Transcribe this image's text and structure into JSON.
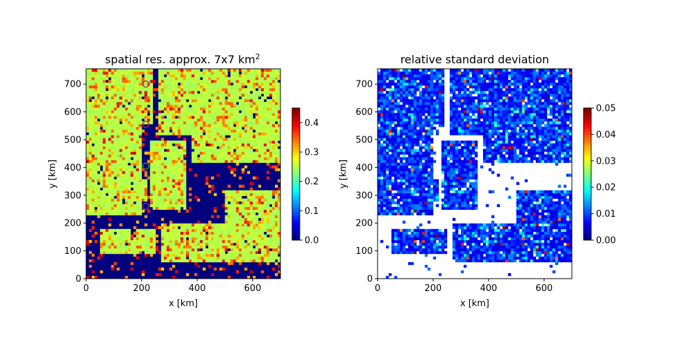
{
  "chart_data": [
    {
      "type": "heatmap",
      "title": "spatial res. approx. 7x7 km",
      "title_superscript": "2",
      "xlabel": "x [km]",
      "ylabel": "y [km]",
      "xlim": [
        0,
        700
      ],
      "ylim": [
        0,
        755
      ],
      "xticks": [
        "0",
        "200",
        "400",
        "600"
      ],
      "yticks": [
        "0",
        "100",
        "200",
        "300",
        "400",
        "500",
        "600",
        "700"
      ],
      "colormap": "jet",
      "colorbar": {
        "min": 0.0,
        "max": 0.45,
        "ticks": [
          "0.0",
          "0.1",
          "0.2",
          "0.3",
          "0.4"
        ]
      },
      "background_value_color": "#00007f",
      "dominant_cloud_value": 0.25,
      "cloud_regions": [
        {
          "x": [
            0,
            240
          ],
          "y": [
            560,
            755
          ]
        },
        {
          "x": [
            260,
            700
          ],
          "y": [
            520,
            755
          ]
        },
        {
          "x": [
            0,
            200
          ],
          "y": [
            230,
            560
          ]
        },
        {
          "x": [
            230,
            360
          ],
          "y": [
            250,
            500
          ]
        },
        {
          "x": [
            380,
            700
          ],
          "y": [
            420,
            640
          ]
        },
        {
          "x": [
            0,
            220
          ],
          "y": [
            280,
            360
          ]
        },
        {
          "x": [
            270,
            700
          ],
          "y": [
            60,
            200
          ]
        },
        {
          "x": [
            50,
            250
          ],
          "y": [
            90,
            180
          ]
        },
        {
          "x": [
            500,
            700
          ],
          "y": [
            180,
            320
          ]
        }
      ],
      "markers": [
        {
          "x": 215,
          "y": 700,
          "color": "#9b2d78"
        },
        {
          "x": 215,
          "y": 555,
          "color": "#b8321a"
        },
        {
          "x": 215,
          "y": 405,
          "color": "#3a8f2a"
        },
        {
          "x": 215,
          "y": 260,
          "color": "#9b2d78"
        }
      ]
    },
    {
      "type": "heatmap",
      "title": "relative standard deviation",
      "xlabel": "x [km]",
      "ylabel": "y [km]",
      "xlim": [
        0,
        700
      ],
      "ylim": [
        0,
        755
      ],
      "xticks": [
        "0",
        "200",
        "400",
        "600"
      ],
      "yticks": [
        "0",
        "100",
        "200",
        "300",
        "400",
        "500",
        "600",
        "700"
      ],
      "colormap": "jet",
      "colorbar": {
        "min": 0.0,
        "max": 0.05,
        "ticks": [
          "0.00",
          "0.01",
          "0.02",
          "0.03",
          "0.04",
          "0.05"
        ]
      },
      "missing_value_color": "#ffffff",
      "typical_value": 0.006,
      "data_regions": [
        {
          "x": [
            0,
            240
          ],
          "y": [
            560,
            755
          ]
        },
        {
          "x": [
            260,
            700
          ],
          "y": [
            520,
            755
          ]
        },
        {
          "x": [
            0,
            200
          ],
          "y": [
            230,
            560
          ]
        },
        {
          "x": [
            230,
            360
          ],
          "y": [
            250,
            500
          ]
        },
        {
          "x": [
            380,
            700
          ],
          "y": [
            420,
            640
          ]
        },
        {
          "x": [
            0,
            220
          ],
          "y": [
            280,
            360
          ]
        },
        {
          "x": [
            270,
            700
          ],
          "y": [
            60,
            200
          ]
        },
        {
          "x": [
            50,
            250
          ],
          "y": [
            90,
            180
          ]
        },
        {
          "x": [
            500,
            700
          ],
          "y": [
            180,
            320
          ]
        }
      ]
    }
  ]
}
